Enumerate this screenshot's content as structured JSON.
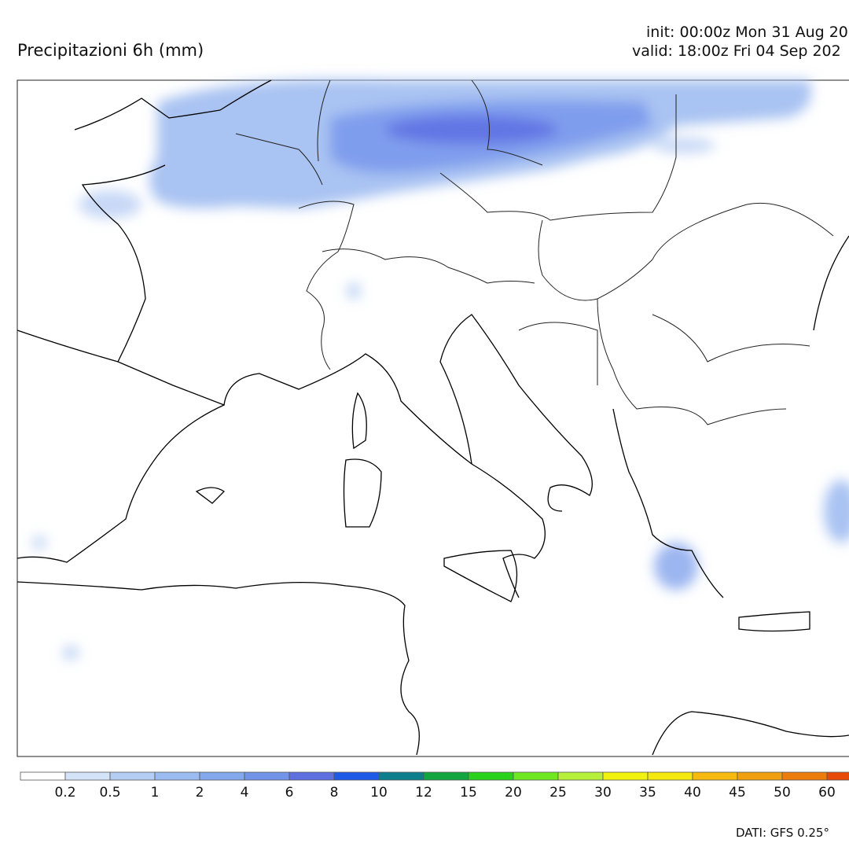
{
  "header": {
    "title": "Precipitazioni 6h (mm)",
    "init": "init: 00:00z Mon 31 Aug 20",
    "valid": "valid: 18:00z Fri 04 Sep 202"
  },
  "legend": {
    "labels": [
      "0.2",
      "0.5",
      "1",
      "2",
      "4",
      "6",
      "8",
      "10",
      "12",
      "15",
      "20",
      "25",
      "30",
      "35",
      "40",
      "45",
      "50",
      "60"
    ]
  },
  "footer": {
    "source": "DATI: GFS 0.25°"
  }
}
